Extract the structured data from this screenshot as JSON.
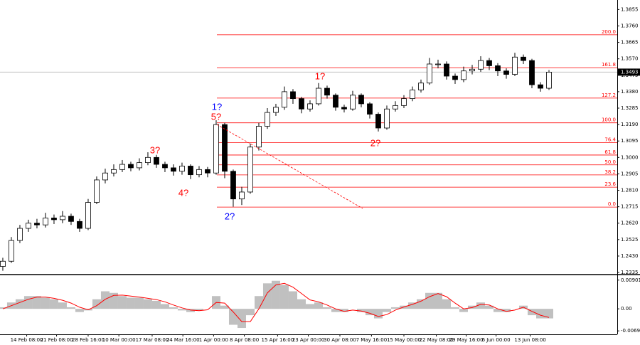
{
  "chart_data": [
    {
      "type": "candlestick",
      "up_color": "#ffffff",
      "down_color": "#000000",
      "wick_color": "#000000",
      "ylim": [
        1.2327,
        1.391
      ],
      "yticks": [
        1.3855,
        {
          "value": 1.376,
          "label": "1.3760"
        },
        1.3665,
        {
          "value": 1.357,
          "label": "1.3570"
        },
        1.3475,
        {
          "value": 1.338,
          "label": "1.3380"
        },
        1.3285,
        {
          "value": 1.319,
          "label": "1.3190"
        },
        1.3095,
        {
          "value": 1.3,
          "label": "1.3000"
        },
        1.2905,
        {
          "value": 1.281,
          "label": "1.2810"
        },
        1.2715,
        {
          "value": 1.262,
          "label": "1.2620"
        },
        1.2525,
        {
          "value": 1.243,
          "label": "1.2430"
        },
        1.2335
      ],
      "xlim": [
        -0.33,
        72
      ],
      "xticks": [
        {
          "value": 2.8,
          "label": "14 Feb 08:00"
        },
        {
          "value": 6.3,
          "label": "21 Feb 08:00"
        },
        {
          "value": 10,
          "label": "28 Feb 16:00"
        },
        {
          "value": 13.6,
          "label": "10 Mar 00:00"
        },
        {
          "value": 17.5,
          "label": "17 Mar 08:00"
        },
        {
          "value": 21.1,
          "label": "24 Mar 16:00"
        },
        {
          "value": 24.7,
          "label": "1 Apr 00:00"
        },
        {
          "value": 28.3,
          "label": "8 Apr 08:00"
        },
        {
          "value": 32.2,
          "label": "15 Apr 16:00"
        },
        {
          "value": 35.8,
          "label": "23 Apr 00:00"
        },
        {
          "value": 39.5,
          "label": "30 Apr 08:00"
        },
        {
          "value": 43.2,
          "label": "7 May 16:00"
        },
        {
          "value": 47,
          "label": "15 May 00:00"
        },
        {
          "value": 50.8,
          "label": "22 May 08:00"
        },
        {
          "value": 54.3,
          "label": "29 May 16:00"
        },
        {
          "value": 57.8,
          "label": "6 Jun 00:00"
        },
        {
          "value": 61.8,
          "label": "13 Jun 08:00"
        }
      ],
      "open": [
        1.237,
        1.24,
        1.252,
        1.259,
        1.262,
        1.261,
        1.265,
        1.264,
        1.266,
        1.263,
        1.259,
        1.274,
        1.287,
        1.291,
        1.293,
        1.296,
        1.294,
        1.297,
        1.3,
        1.296,
        1.294,
        1.292,
        1.295,
        1.29,
        1.293,
        1.291,
        1.319,
        1.292,
        1.276,
        1.28,
        1.306,
        1.318,
        1.326,
        1.329,
        1.338,
        1.334,
        1.328,
        1.331,
        1.34,
        1.336,
        1.329,
        1.328,
        1.336,
        1.331,
        1.325,
        1.317,
        1.328,
        1.33,
        1.334,
        1.339,
        1.343,
        1.354,
        1.354,
        1.347,
        1.345,
        1.35,
        1.351,
        1.356,
        1.353,
        1.35,
        1.348,
        1.358,
        1.356,
        1.342,
        1.34
      ],
      "high": [
        1.242,
        1.254,
        1.261,
        1.264,
        1.2645,
        1.268,
        1.267,
        1.269,
        1.2675,
        1.2645,
        1.276,
        1.289,
        1.2935,
        1.296,
        1.2985,
        1.2975,
        1.2995,
        1.303,
        1.3015,
        1.2975,
        1.296,
        1.297,
        1.296,
        1.295,
        1.2945,
        1.3215,
        1.32,
        1.293,
        1.283,
        1.308,
        1.32,
        1.3285,
        1.331,
        1.341,
        1.3395,
        1.335,
        1.333,
        1.343,
        1.3415,
        1.337,
        1.3305,
        1.3385,
        1.337,
        1.332,
        1.326,
        1.33,
        1.3325,
        1.336,
        1.341,
        1.345,
        1.3575,
        1.3565,
        1.3555,
        1.3485,
        1.3525,
        1.3535,
        1.3585,
        1.3575,
        1.3545,
        1.3515,
        1.3605,
        1.3595,
        1.357,
        1.3435,
        1.3505
      ],
      "low": [
        1.2345,
        1.239,
        1.2505,
        1.257,
        1.259,
        1.2595,
        1.2615,
        1.262,
        1.261,
        1.257,
        1.258,
        1.273,
        1.285,
        1.289,
        1.2915,
        1.292,
        1.2925,
        1.2955,
        1.294,
        1.2915,
        1.2895,
        1.29,
        1.2875,
        1.2885,
        1.2885,
        1.29,
        1.288,
        1.2715,
        1.2725,
        1.279,
        1.304,
        1.3165,
        1.324,
        1.3275,
        1.331,
        1.3255,
        1.3265,
        1.33,
        1.334,
        1.327,
        1.326,
        1.327,
        1.329,
        1.3225,
        1.315,
        1.316,
        1.3265,
        1.3285,
        1.3325,
        1.3375,
        1.342,
        1.3515,
        1.345,
        1.3425,
        1.3435,
        1.348,
        1.3495,
        1.3505,
        1.347,
        1.3455,
        1.347,
        1.354,
        1.34,
        1.338,
        1.339
      ],
      "close": [
        1.24,
        1.252,
        1.259,
        1.262,
        1.261,
        1.265,
        1.264,
        1.266,
        1.263,
        1.259,
        1.274,
        1.287,
        1.291,
        1.293,
        1.296,
        1.294,
        1.297,
        1.3,
        1.296,
        1.294,
        1.292,
        1.295,
        1.29,
        1.293,
        1.291,
        1.319,
        1.292,
        1.276,
        1.28,
        1.306,
        1.318,
        1.326,
        1.329,
        1.338,
        1.334,
        1.328,
        1.331,
        1.34,
        1.336,
        1.329,
        1.328,
        1.336,
        1.331,
        1.325,
        1.317,
        1.328,
        1.33,
        1.334,
        1.339,
        1.343,
        1.354,
        1.354,
        1.347,
        1.345,
        1.35,
        1.351,
        1.356,
        1.353,
        1.35,
        1.348,
        1.358,
        1.356,
        1.342,
        1.34,
        1.3493
      ],
      "last_price": {
        "value": 1.3493,
        "color": "#c0c0c0"
      },
      "level_color": "#ff0000",
      "levels": [
        {
          "label": "0.0",
          "value": 1.2713
        },
        {
          "label": "23.6",
          "value": 1.2828
        },
        {
          "label": "38.2",
          "value": 1.2899
        },
        {
          "label": "50.0",
          "value": 1.2957
        },
        {
          "label": "61.8",
          "value": 1.3014
        },
        {
          "label": "76.4",
          "value": 1.3085
        },
        {
          "label": "100.0",
          "value": 1.32
        },
        {
          "label": "127.2",
          "value": 1.3343
        },
        {
          "label": "161.8",
          "value": 1.3519
        },
        {
          "label": "200.0",
          "value": 1.3709
        }
      ],
      "annotations": [
        {
          "text": "1?",
          "color": "#0000ff"
        },
        {
          "text": "5?",
          "color": "#ff0000"
        },
        {
          "text": "3?",
          "color": "#ff0000"
        },
        {
          "text": "4?",
          "color": "#ff0000"
        },
        {
          "text": "2?",
          "color": "#0000ff"
        },
        {
          "text": "1?",
          "color": "#ff0000"
        },
        {
          "text": "2?",
          "color": "#ff0000"
        }
      ]
    },
    {
      "type": "macd",
      "ylim": [
        -0.008,
        0.0103
      ],
      "yticks": [
        0.00901,
        {
          "value": 0,
          "label": "0.00"
        },
        -0.00692
      ],
      "histogram": {
        "color": "#c0c0c0",
        "values": [
          0.0005,
          0.002,
          0.003,
          0.004,
          0.004,
          0.0035,
          0.003,
          0.002,
          0.0005,
          -0.001,
          -0.0005,
          0.003,
          0.0055,
          0.005,
          0.004,
          0.0035,
          0.0035,
          0.003,
          0.0025,
          0.0015,
          0.0005,
          -0.0005,
          -0.001,
          -0.0005,
          0.0,
          0.004,
          0.001,
          -0.005,
          -0.006,
          -0.002,
          0.004,
          0.008,
          0.0088,
          0.0075,
          0.0055,
          0.003,
          0.0015,
          0.002,
          0.0005,
          -0.001,
          -0.001,
          0.0,
          -0.001,
          -0.002,
          -0.003,
          -0.001,
          0.0005,
          0.001,
          0.002,
          0.003,
          0.005,
          0.005,
          0.003,
          0.0005,
          -0.001,
          0.001,
          0.002,
          0.001,
          -0.001,
          -0.001,
          0.0,
          0.001,
          -0.002,
          -0.003,
          -0.003
        ]
      },
      "signal": {
        "color": "#ff0000",
        "values": [
          0.0,
          0.001,
          0.002,
          0.003,
          0.0037,
          0.0037,
          0.0033,
          0.0027,
          0.0018,
          0.0005,
          -0.0003,
          0.001,
          0.003,
          0.0042,
          0.0043,
          0.004,
          0.0037,
          0.0033,
          0.0029,
          0.0022,
          0.0012,
          0.0003,
          -0.0004,
          -0.0006,
          -0.0003,
          0.002,
          0.0018,
          -0.001,
          -0.004,
          -0.004,
          0.0,
          0.005,
          0.0075,
          0.008,
          0.0068,
          0.0048,
          0.0028,
          0.0022,
          0.0012,
          0.0,
          -0.0008,
          -0.0004,
          -0.0007,
          -0.0014,
          -0.0024,
          -0.0018,
          -0.0004,
          0.0006,
          0.0014,
          0.0024,
          0.0038,
          0.0048,
          0.0038,
          0.0018,
          0.0,
          0.0004,
          0.0014,
          0.0012,
          0.0,
          -0.0008,
          -0.0004,
          0.0005,
          -0.0008,
          -0.002,
          -0.0027
        ]
      }
    }
  ]
}
